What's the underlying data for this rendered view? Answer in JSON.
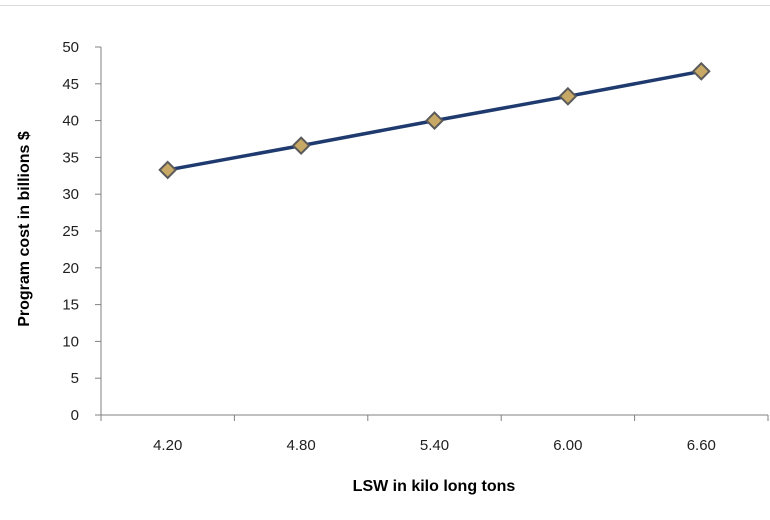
{
  "chart_data": {
    "type": "line",
    "title": "",
    "xlabel": "LSW in kilo long tons",
    "ylabel": "Program cost in billions $",
    "categories": [
      "4.20",
      "4.80",
      "5.40",
      "6.00",
      "6.60"
    ],
    "series": [
      {
        "values": [
          33.3,
          36.6,
          40.0,
          43.3,
          46.7
        ]
      }
    ],
    "yticks": [
      "0",
      "5",
      "10",
      "15",
      "20",
      "25",
      "30",
      "35",
      "40",
      "45",
      "50"
    ],
    "ylim": [
      0,
      50
    ],
    "grid": false,
    "legend": "none",
    "colors": {
      "line": "#1f3a6e",
      "marker_fill": "#c8a865",
      "marker_stroke": "#5a5a5a",
      "axis": "#808080"
    }
  }
}
